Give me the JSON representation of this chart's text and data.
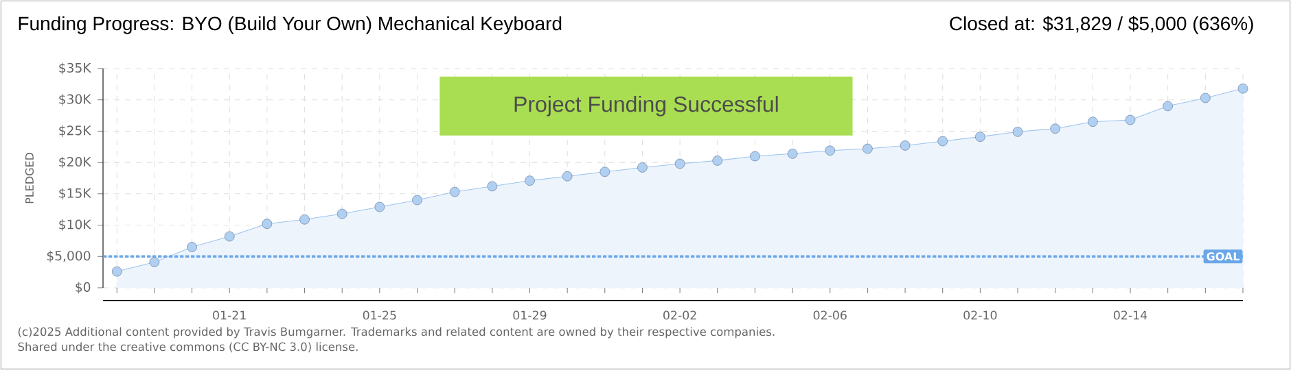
{
  "chart_data": {
    "type": "area",
    "title": "Funding Progress: BYO (Build Your Own) Mechanical Keyboard",
    "subtitle": "Closed at: $31,829 / $5,000 (636%)",
    "ylabel": "PLEDGED",
    "categories": [
      null,
      null,
      null,
      "01-21",
      null,
      null,
      null,
      "01-25",
      null,
      null,
      null,
      "01-29",
      null,
      null,
      null,
      "02-02",
      null,
      null,
      null,
      "02-06",
      null,
      null,
      null,
      "02-10",
      null,
      null,
      null,
      "02-14",
      null,
      null,
      null
    ],
    "series": [
      {
        "color": "#9cc3ee",
        "values": [
          2600,
          4100,
          6500,
          8200,
          10200,
          10900,
          11800,
          12900,
          14000,
          15300,
          16200,
          17100,
          17800,
          18500,
          19200,
          19800,
          20300,
          21000,
          21400,
          21900,
          22200,
          22700,
          23400,
          24100,
          24900,
          25400,
          26500,
          26800,
          29000,
          30300,
          31800
        ]
      }
    ],
    "ylim": [
      0,
      35000
    ],
    "yticks": [
      {
        "value": 0,
        "label": "$0"
      },
      {
        "value": 5000,
        "label": "$5,000"
      },
      {
        "value": 10000,
        "label": "$10K"
      },
      {
        "value": 15000,
        "label": "$15K"
      },
      {
        "value": 20000,
        "label": "$20K"
      },
      {
        "value": 25000,
        "label": "$25K"
      },
      {
        "value": 30000,
        "label": "$30K"
      },
      {
        "value": 35000,
        "label": "$35K"
      }
    ],
    "grid": true,
    "marker": "circle",
    "ref_lines": [
      {
        "axis": "y",
        "value": 5000,
        "label": "GOAL",
        "color": "#6aa6e8",
        "line_style": "dashed"
      }
    ],
    "annotations": [
      "Project Funding Successful",
      "(c)2025 Additional content provided by Travis Bumgarner. Trademarks and related content are owned by their respective companies.",
      "Shared under the creative commons (CC BY-NC 3.0) license."
    ]
  }
}
